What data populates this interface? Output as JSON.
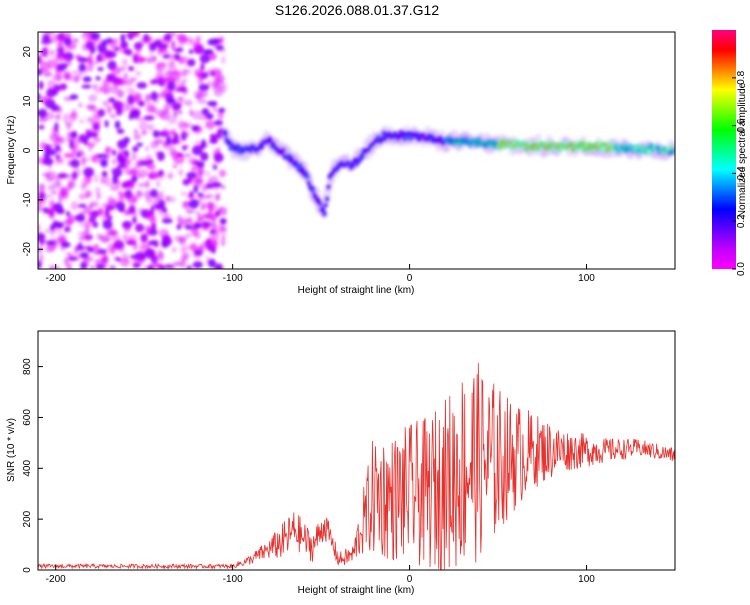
{
  "title": "S126.2026.088.01.37.G12",
  "chart_data": [
    {
      "type": "heatmap",
      "xlabel": "Height of straight line (km)",
      "ylabel": "Frequency (Hz)",
      "xlim": [
        -210,
        150
      ],
      "ylim": [
        -24,
        24
      ],
      "xticks": [
        -200,
        -100,
        0,
        100
      ],
      "yticks": [
        -20,
        -10,
        0,
        10,
        20
      ],
      "colorbar": {
        "label": "Normalized spectral amplitude",
        "range": [
          0.0,
          1.0
        ],
        "ticks": [
          "0.0",
          "0.2",
          "0.4",
          "0.6",
          "0.8"
        ],
        "colors": [
          "#ff00ff",
          "#c000ff",
          "#6000ff",
          "#0000ff",
          "#0080ff",
          "#00ffff",
          "#00ff80",
          "#00ff00",
          "#80ff00",
          "#ffff00",
          "#ff8000",
          "#ff0000",
          "#ff0080"
        ]
      },
      "noise_region": {
        "x": [
          -210,
          -105
        ],
        "freq": [
          -24,
          24
        ],
        "amplitude": 0.15
      },
      "ridge": [
        {
          "x": -105,
          "freq": 3.5
        },
        {
          "x": -100,
          "freq": 0.5
        },
        {
          "x": -90,
          "freq": 0
        },
        {
          "x": -80,
          "freq": 2
        },
        {
          "x": -70,
          "freq": -1
        },
        {
          "x": -60,
          "freq": -4
        },
        {
          "x": -52,
          "freq": -10
        },
        {
          "x": -48,
          "freq": -13
        },
        {
          "x": -45,
          "freq": -5
        },
        {
          "x": -40,
          "freq": -3
        },
        {
          "x": -32,
          "freq": -3
        },
        {
          "x": -25,
          "freq": 0
        },
        {
          "x": -15,
          "freq": 3
        },
        {
          "x": 0,
          "freq": 3
        },
        {
          "x": 20,
          "freq": 2
        },
        {
          "x": 40,
          "freq": 1.5
        },
        {
          "x": 70,
          "freq": 0.8
        },
        {
          "x": 100,
          "freq": 0.8
        },
        {
          "x": 130,
          "freq": 0.3
        },
        {
          "x": 150,
          "freq": 0
        }
      ]
    },
    {
      "type": "line",
      "xlabel": "Height of straight line (km)",
      "ylabel": "SNR (10 * v/v)",
      "xlim": [
        -210,
        150
      ],
      "ylim": [
        0,
        940
      ],
      "xticks": [
        -200,
        -100,
        0,
        100
      ],
      "yticks": [
        0,
        200,
        400,
        600,
        800
      ],
      "color": "#e8302c",
      "envelope": [
        {
          "x": -210,
          "mean": 15,
          "amp": 8
        },
        {
          "x": -100,
          "mean": 15,
          "amp": 8
        },
        {
          "x": -90,
          "mean": 40,
          "amp": 20
        },
        {
          "x": -80,
          "mean": 80,
          "amp": 40
        },
        {
          "x": -70,
          "mean": 120,
          "amp": 80
        },
        {
          "x": -65,
          "mean": 160,
          "amp": 80
        },
        {
          "x": -55,
          "mean": 90,
          "amp": 60
        },
        {
          "x": -48,
          "mean": 180,
          "amp": 60
        },
        {
          "x": -40,
          "mean": 40,
          "amp": 30
        },
        {
          "x": -32,
          "mean": 60,
          "amp": 40
        },
        {
          "x": -28,
          "mean": 150,
          "amp": 100
        },
        {
          "x": -20,
          "mean": 300,
          "amp": 250
        },
        {
          "x": -10,
          "mean": 280,
          "amp": 250
        },
        {
          "x": 0,
          "mean": 300,
          "amp": 280
        },
        {
          "x": 10,
          "mean": 300,
          "amp": 300
        },
        {
          "x": 20,
          "mean": 330,
          "amp": 350
        },
        {
          "x": 30,
          "mean": 400,
          "amp": 400
        },
        {
          "x": 35,
          "mean": 430,
          "amp": 420
        },
        {
          "x": 45,
          "mean": 420,
          "amp": 350
        },
        {
          "x": 55,
          "mean": 440,
          "amp": 250
        },
        {
          "x": 70,
          "mean": 470,
          "amp": 150
        },
        {
          "x": 90,
          "mean": 470,
          "amp": 80
        },
        {
          "x": 110,
          "mean": 470,
          "amp": 50
        },
        {
          "x": 130,
          "mean": 480,
          "amp": 35
        },
        {
          "x": 150,
          "mean": 450,
          "amp": 30
        }
      ]
    }
  ]
}
